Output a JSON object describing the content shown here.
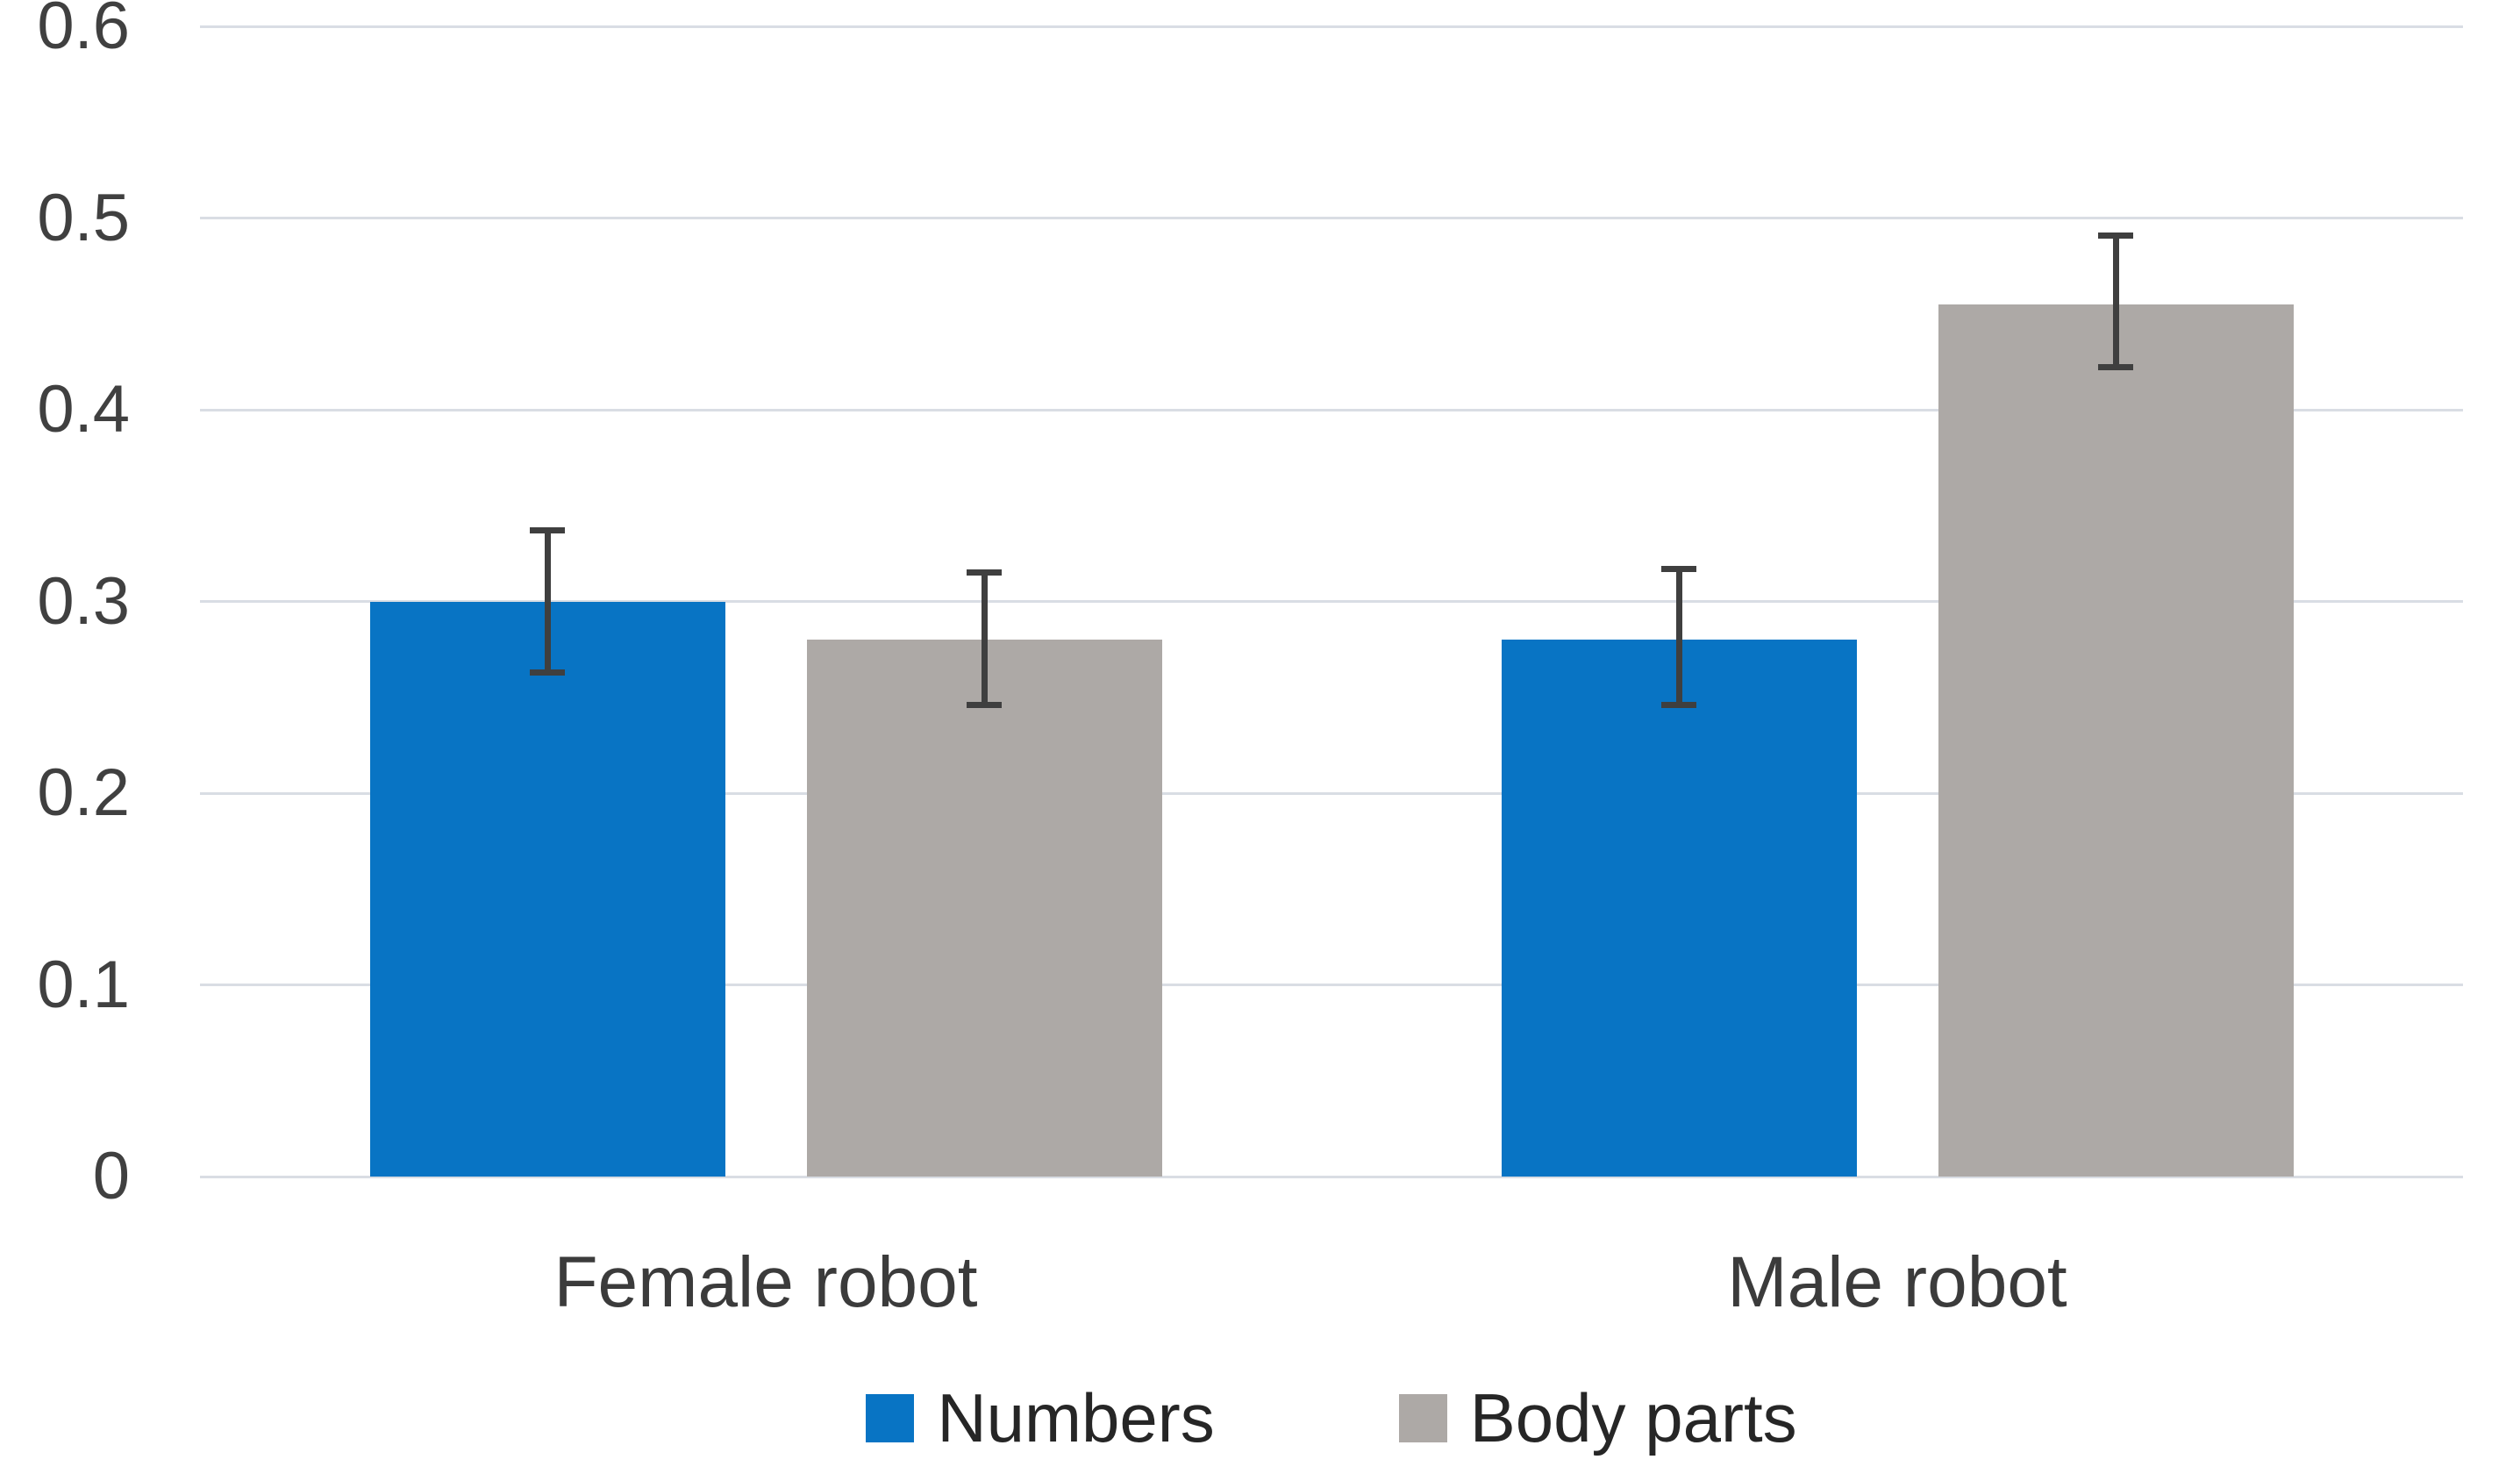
{
  "chart_data": {
    "type": "bar",
    "title": "",
    "xlabel": "",
    "ylabel": "",
    "categories": [
      "Female robot",
      "Male robot"
    ],
    "series": [
      {
        "name": "Numbers",
        "color": "#0874C4",
        "values": [
          0.3,
          0.28
        ],
        "error_low": [
          0.263,
          0.246
        ],
        "error_high": [
          0.337,
          0.317
        ]
      },
      {
        "name": "Body parts",
        "color": "#ADA9A6",
        "values": [
          0.28,
          0.455
        ],
        "error_low": [
          0.246,
          0.422
        ],
        "error_high": [
          0.315,
          0.491
        ]
      }
    ],
    "ylim": [
      0,
      0.6
    ],
    "ytick_step": 0.1,
    "ytick_labels": [
      "0",
      "0.1",
      "0.2",
      "0.3",
      "0.4",
      "0.5",
      "0.6"
    ],
    "grid": true,
    "error_bars": true,
    "legend_position": "bottom",
    "colors": {
      "gridline": "#D9DDE4",
      "error_bar": "#3F3F3F",
      "tick_text": "#404040",
      "category_text": "#3B3B3B",
      "legend_text": "#262626"
    }
  }
}
